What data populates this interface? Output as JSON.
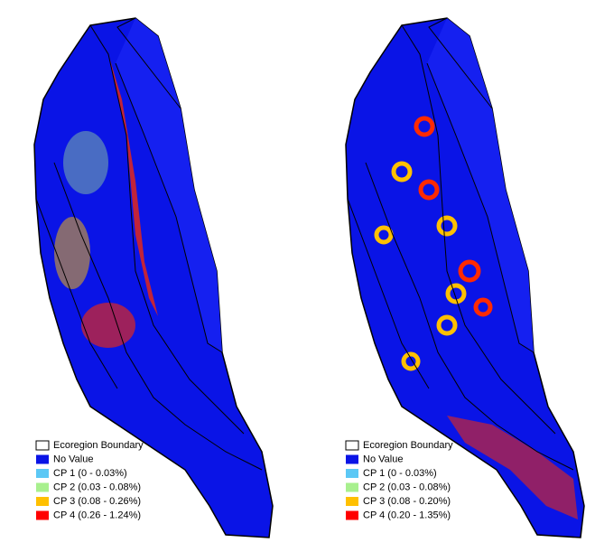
{
  "maps": [
    {
      "legend": [
        {
          "label": "Ecoregion Boundary",
          "color": "#ffffff"
        },
        {
          "label": "No Value",
          "color": "#0a14e6"
        },
        {
          "label": "CP 1 (0 - 0.03%)",
          "color": "#5cc8f5"
        },
        {
          "label": "CP 2 (0.03 - 0.08%)",
          "color": "#a8f08e"
        },
        {
          "label": "CP 3 (0.08 - 0.26%)",
          "color": "#ffc000"
        },
        {
          "label": "CP 4 (0.26 - 1.24%)",
          "color": "#ff0000"
        }
      ]
    },
    {
      "legend": [
        {
          "label": "Ecoregion Boundary",
          "color": "#ffffff"
        },
        {
          "label": "No Value",
          "color": "#0a14e6"
        },
        {
          "label": "CP 1 (0 - 0.03%)",
          "color": "#5cc8f5"
        },
        {
          "label": "CP 2 (0.03 - 0.08%)",
          "color": "#a8f08e"
        },
        {
          "label": "CP 3 (0.08 - 0.20%)",
          "color": "#ffc000"
        },
        {
          "label": "CP 4 (0.20 - 1.35%)",
          "color": "#ff0000"
        }
      ]
    }
  ]
}
